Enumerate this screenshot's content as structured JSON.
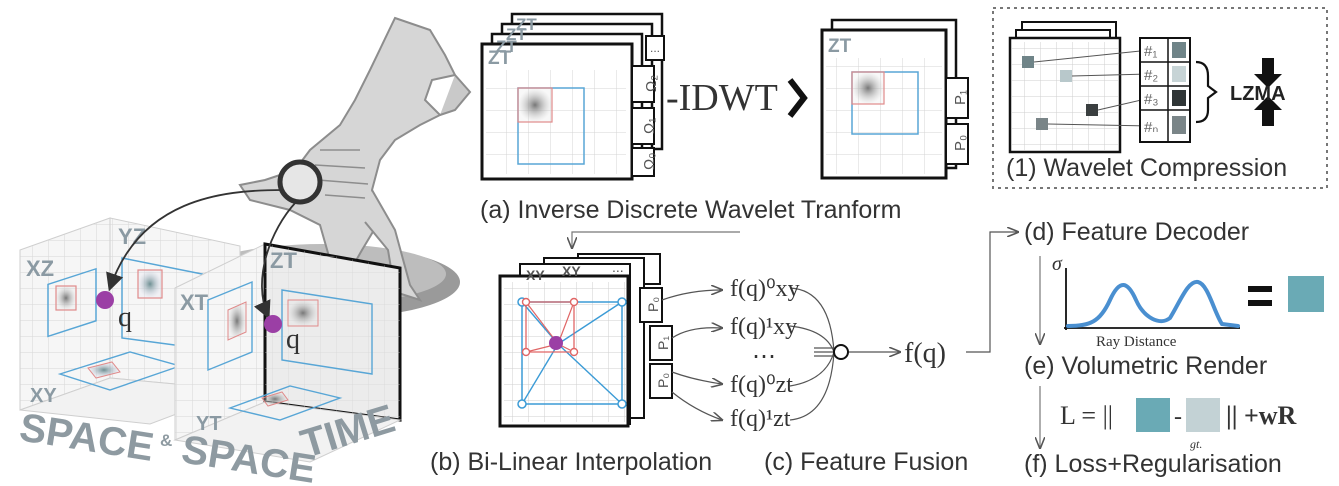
{
  "captions": {
    "a": "(a) Inverse Discrete Wavelet Tranform",
    "b": "(b) Bi-Linear Interpolation",
    "c": "(c) Feature Fusion",
    "d": "(d) Feature Decoder",
    "e": "(e) Volumetric Render",
    "f": "(f) Loss+Regularisation",
    "one": "(1) Wavelet Compression"
  },
  "idwt_label": "-IDWT",
  "lzma_label": "LZMA",
  "space_labels": {
    "space": "SPACE",
    "amp": "&",
    "space2": "SPACE",
    "time": "TIME"
  },
  "plane_labels": {
    "xz": "XZ",
    "yz": "YZ",
    "xy": "XY",
    "xt": "XT",
    "yt": "YT",
    "zt": "ZT"
  },
  "stack_labels": {
    "zt": "ZT",
    "omega2": "Ω₂",
    "omega1": "Ω₁",
    "omega0": "Ω₀",
    "p1": "P₁",
    "p0": "P₀",
    "dots": "...",
    "xy": "XY"
  },
  "codebook": [
    "#₁",
    "#₂",
    "#₃",
    "#ₙ"
  ],
  "point_q": "q",
  "features": [
    "f(q)⁰xy",
    "f(q)¹xy",
    "⋯",
    "f(q)⁰zt",
    "f(q)¹zt"
  ],
  "fused": "f(q)",
  "plot": {
    "ylabel": "σ",
    "xlabel": "Ray Distance"
  },
  "loss": {
    "lhs": "L = ||",
    "minus": "-",
    "rhs": "|| +wR",
    "gt": "gt."
  },
  "colors": {
    "teal": "#6aaab5",
    "light": "#c3d2d5",
    "purple": "#9b3fa5",
    "curve": "#4a8fd0"
  }
}
